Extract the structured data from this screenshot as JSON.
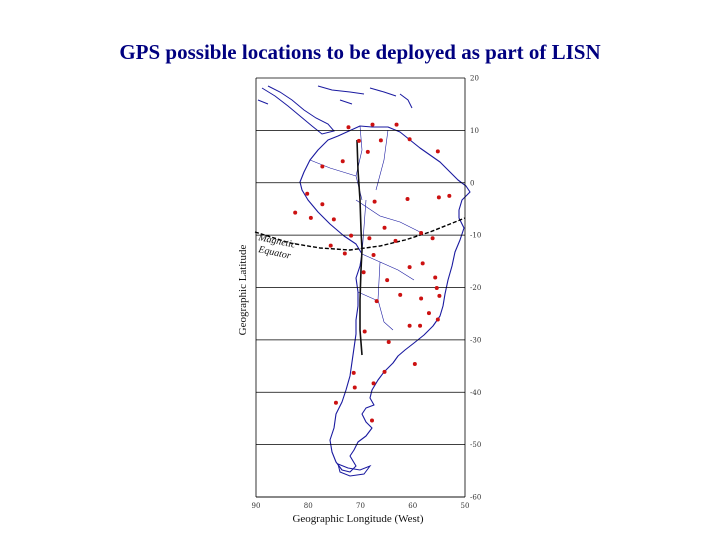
{
  "title": "GPS possible locations to be deployed as part of LISN",
  "map": {
    "x_axis_label": "Geographic Longitude (West)",
    "y_axis_label": "Geographic Latitude",
    "equator_label_line1": "Magnetic",
    "equator_label_line2": "Equator",
    "lon_ticks": [
      "90",
      "80",
      "70",
      "60",
      "50"
    ],
    "lat_ticks": [
      "20",
      "10",
      "0",
      "-10",
      "-20",
      "-30",
      "-40",
      "-50",
      "-60"
    ],
    "lon_range_west": [
      90,
      50
    ],
    "lat_range": [
      -60,
      20
    ],
    "grid_lines": true,
    "colors": {
      "coast": "#1a1aa0",
      "grid": "#000000",
      "site": "#cc1111",
      "title": "#000080"
    }
  },
  "sites": [
    {
      "lon": 72.3,
      "lat": 10.6
    },
    {
      "lon": 70.3,
      "lat": 8.0
    },
    {
      "lon": 67.7,
      "lat": 11.1
    },
    {
      "lon": 66.1,
      "lat": 8.1
    },
    {
      "lon": 63.1,
      "lat": 11.1
    },
    {
      "lon": 60.6,
      "lat": 8.3
    },
    {
      "lon": 55.2,
      "lat": 6.0
    },
    {
      "lon": 68.6,
      "lat": 5.9
    },
    {
      "lon": 73.4,
      "lat": 4.1
    },
    {
      "lon": 77.3,
      "lat": 3.1
    },
    {
      "lon": 80.2,
      "lat": -2.1
    },
    {
      "lon": 77.3,
      "lat": -4.1
    },
    {
      "lon": 82.5,
      "lat": -5.7
    },
    {
      "lon": 79.5,
      "lat": -6.7
    },
    {
      "lon": 75.1,
      "lat": -7.0
    },
    {
      "lon": 67.3,
      "lat": -3.6
    },
    {
      "lon": 61.0,
      "lat": -3.1
    },
    {
      "lon": 55.0,
      "lat": -2.8
    },
    {
      "lon": 53.0,
      "lat": -2.5
    },
    {
      "lon": 71.8,
      "lat": -10.1
    },
    {
      "lon": 75.7,
      "lat": -12.0
    },
    {
      "lon": 73.0,
      "lat": -13.5
    },
    {
      "lon": 68.3,
      "lat": -10.6
    },
    {
      "lon": 65.4,
      "lat": -8.6
    },
    {
      "lon": 63.3,
      "lat": -11.1
    },
    {
      "lon": 58.4,
      "lat": -9.6
    },
    {
      "lon": 58.1,
      "lat": -15.4
    },
    {
      "lon": 56.2,
      "lat": -10.6
    },
    {
      "lon": 60.6,
      "lat": -16.1
    },
    {
      "lon": 67.5,
      "lat": -13.8
    },
    {
      "lon": 64.9,
      "lat": -18.6
    },
    {
      "lon": 69.4,
      "lat": -17.1
    },
    {
      "lon": 66.9,
      "lat": -22.6
    },
    {
      "lon": 62.4,
      "lat": -21.4
    },
    {
      "lon": 58.4,
      "lat": -22.1
    },
    {
      "lon": 54.9,
      "lat": -21.6
    },
    {
      "lon": 55.7,
      "lat": -18.1
    },
    {
      "lon": 55.4,
      "lat": -20.1
    },
    {
      "lon": 56.9,
      "lat": -24.9
    },
    {
      "lon": 58.6,
      "lat": -27.3
    },
    {
      "lon": 55.2,
      "lat": -26.1
    },
    {
      "lon": 60.6,
      "lat": -27.3
    },
    {
      "lon": 69.2,
      "lat": -28.4
    },
    {
      "lon": 64.6,
      "lat": -30.4
    },
    {
      "lon": 59.6,
      "lat": -34.6
    },
    {
      "lon": 71.3,
      "lat": -36.3
    },
    {
      "lon": 65.4,
      "lat": -36.1
    },
    {
      "lon": 67.5,
      "lat": -38.3
    },
    {
      "lon": 71.1,
      "lat": -39.1
    },
    {
      "lon": 74.7,
      "lat": -42.0
    },
    {
      "lon": 67.8,
      "lat": -45.4
    }
  ]
}
